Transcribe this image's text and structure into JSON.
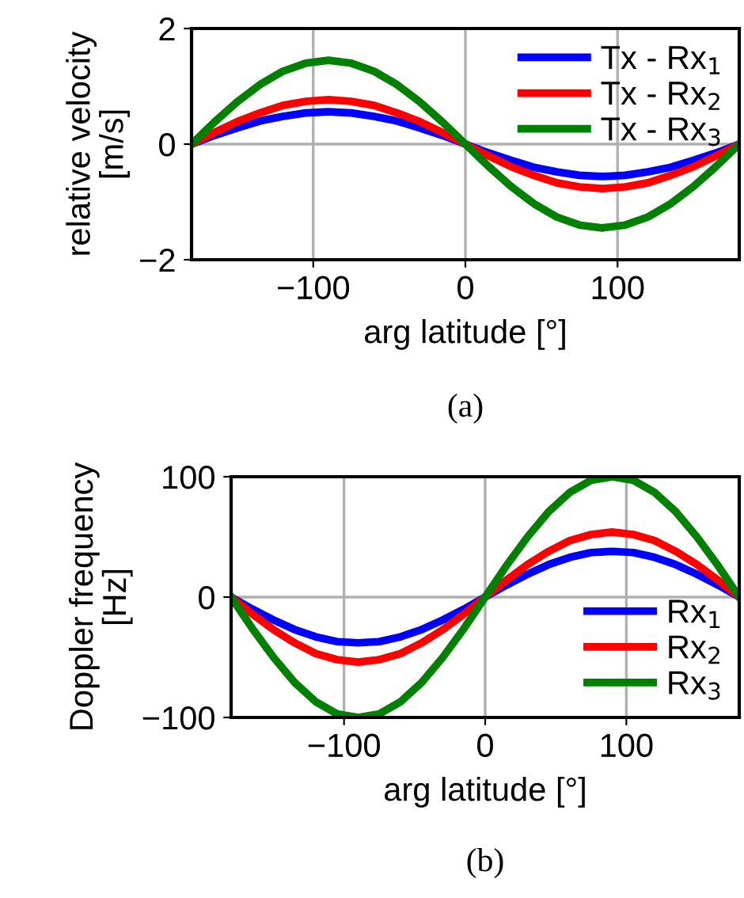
{
  "chart_data": [
    {
      "type": "line",
      "xlabel": "arg latitude [°]",
      "ylabel": "relative velocity\n[m/s]",
      "annotations": [
        "(a)"
      ],
      "x": [
        -180,
        -165,
        -150,
        -135,
        -120,
        -105,
        -90,
        -75,
        -60,
        -45,
        -30,
        -15,
        0,
        15,
        30,
        45,
        60,
        75,
        90,
        105,
        120,
        135,
        150,
        165,
        180
      ],
      "xlim": [
        -180,
        180
      ],
      "ylim": [
        -2,
        2
      ],
      "xticks": [
        {
          "value": -100,
          "label": "−100"
        },
        0,
        100
      ],
      "yticks": [
        {
          "value": -2,
          "label": "−2"
        },
        0,
        2
      ],
      "grid": true,
      "legend": "top right",
      "line_style": "solid",
      "marker": "none",
      "series": [
        {
          "name": "Tx - Rx$_{1}$",
          "color": "#0000ff",
          "values": [
            0,
            0.15,
            0.28,
            0.4,
            0.48,
            0.54,
            0.56,
            0.54,
            0.48,
            0.4,
            0.28,
            0.15,
            0,
            -0.15,
            -0.28,
            -0.4,
            -0.48,
            -0.54,
            -0.56,
            -0.54,
            -0.48,
            -0.4,
            -0.28,
            -0.15,
            0
          ]
        },
        {
          "name": "Tx - Rx$_{2}$",
          "color": "#ff0000",
          "values": [
            0,
            0.2,
            0.39,
            0.54,
            0.67,
            0.74,
            0.77,
            0.74,
            0.67,
            0.54,
            0.39,
            0.2,
            0,
            -0.2,
            -0.39,
            -0.54,
            -0.67,
            -0.74,
            -0.77,
            -0.74,
            -0.67,
            -0.54,
            -0.39,
            -0.2,
            0
          ]
        },
        {
          "name": "Tx - Rx$_{3}$",
          "color": "#008000",
          "values": [
            0,
            0.38,
            0.73,
            1.03,
            1.26,
            1.4,
            1.45,
            1.4,
            1.26,
            1.03,
            0.73,
            0.38,
            0,
            -0.38,
            -0.73,
            -1.03,
            -1.26,
            -1.4,
            -1.45,
            -1.4,
            -1.26,
            -1.03,
            -0.73,
            -0.38,
            0
          ]
        }
      ]
    },
    {
      "type": "line",
      "xlabel": "arg latitude [°]",
      "ylabel": "Doppler frequency\n[Hz]",
      "annotations": [
        "(b)"
      ],
      "x": [
        -180,
        -165,
        -150,
        -135,
        -120,
        -105,
        -90,
        -75,
        -60,
        -45,
        -30,
        -15,
        0,
        15,
        30,
        45,
        60,
        75,
        90,
        105,
        120,
        135,
        150,
        165,
        180
      ],
      "xlim": [
        -180,
        180
      ],
      "ylim": [
        -100,
        100
      ],
      "xticks": [
        {
          "value": -100,
          "label": "−100"
        },
        0,
        100
      ],
      "yticks": [
        {
          "value": -100,
          "label": "−100"
        },
        0,
        100
      ],
      "grid": true,
      "legend": "bottom right",
      "line_style": "solid",
      "marker": "none",
      "series": [
        {
          "name": "Rx$_{1}$",
          "color": "#0000ff",
          "values": [
            0,
            -10,
            -19,
            -27,
            -33,
            -37,
            -38,
            -37,
            -33,
            -27,
            -19,
            -10,
            0,
            10,
            19,
            27,
            33,
            37,
            38,
            37,
            33,
            27,
            19,
            10,
            0
          ]
        },
        {
          "name": "Rx$_{2}$",
          "color": "#ff0000",
          "values": [
            0,
            -14,
            -27,
            -38,
            -47,
            -52,
            -54,
            -52,
            -47,
            -38,
            -27,
            -14,
            0,
            14,
            27,
            38,
            47,
            52,
            54,
            52,
            47,
            38,
            27,
            14,
            0
          ]
        },
        {
          "name": "Rx$_{3}$",
          "color": "#008000",
          "values": [
            0,
            -26,
            -50,
            -71,
            -87,
            -97,
            -100,
            -97,
            -87,
            -71,
            -50,
            -26,
            0,
            26,
            50,
            71,
            87,
            97,
            100,
            97,
            87,
            71,
            50,
            26,
            0
          ]
        }
      ]
    }
  ]
}
